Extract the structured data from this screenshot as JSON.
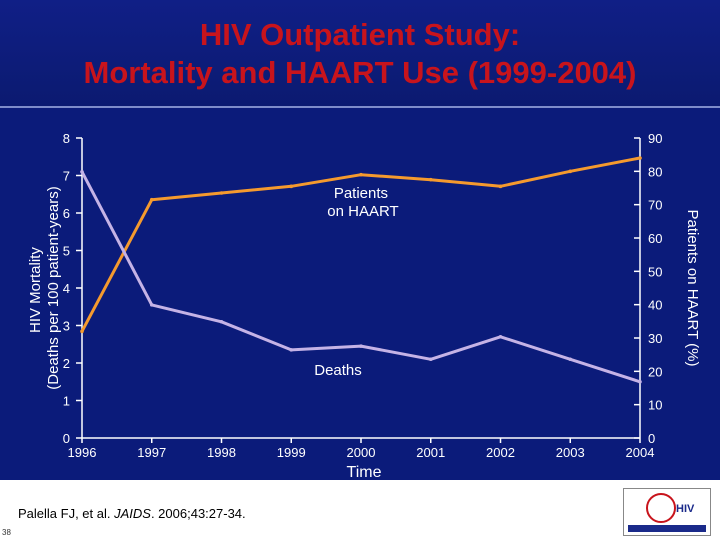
{
  "title": {
    "line1": "HIV Outpatient Study:",
    "line2": "Mortality and HAART Use (1999-2004)"
  },
  "chart_data": {
    "type": "line",
    "x": [
      1996,
      1997,
      1998,
      1999,
      2000,
      2001,
      2002,
      2003,
      2004
    ],
    "x_tick_labels": [
      "1996",
      "1997",
      "1998",
      "1999",
      "2000",
      "2001",
      "2002",
      "2003",
      "2004"
    ],
    "xlabel": "Time",
    "ylabel_left_line1": "HIV Mortality",
    "ylabel_left_line2": "(Deaths per 100 patient-years)",
    "ylabel_right": "Patients on HAART (%)",
    "ylim_left": [
      0,
      8
    ],
    "ylim_right": [
      0,
      90
    ],
    "left_ticks": [
      "0",
      "1",
      "2",
      "3",
      "4",
      "5",
      "6",
      "7",
      "8"
    ],
    "right_ticks": [
      "0",
      "10",
      "20",
      "30",
      "40",
      "50",
      "60",
      "70",
      "80",
      "90"
    ],
    "grid": false,
    "series": [
      {
        "name_line1": "Patients",
        "name_line2": "on HAART",
        "axis": "right",
        "color": "#f59a2e",
        "x": [
          1996,
          1997,
          1998,
          1999,
          2000,
          2001,
          2002,
          2003,
          2004
        ],
        "values": [
          32,
          71.5,
          73.5,
          75.5,
          79,
          77.5,
          75.5,
          80,
          84
        ]
      },
      {
        "name": "Deaths",
        "axis": "left",
        "color": "#c5b3e6",
        "x": [
          1996,
          1997,
          1998,
          1999,
          2000,
          2001,
          2002,
          2003,
          2004
        ],
        "values": [
          7.1,
          3.55,
          3.1,
          2.35,
          2.45,
          2.1,
          2.7,
          2.1,
          1.5
        ]
      }
    ]
  },
  "citation": {
    "authors": "Palella FJ, et al. ",
    "journal": "JAIDS",
    "ref": ". 2006;43:27-34."
  },
  "slide_number": "38",
  "logo": {
    "text": "HIV"
  }
}
